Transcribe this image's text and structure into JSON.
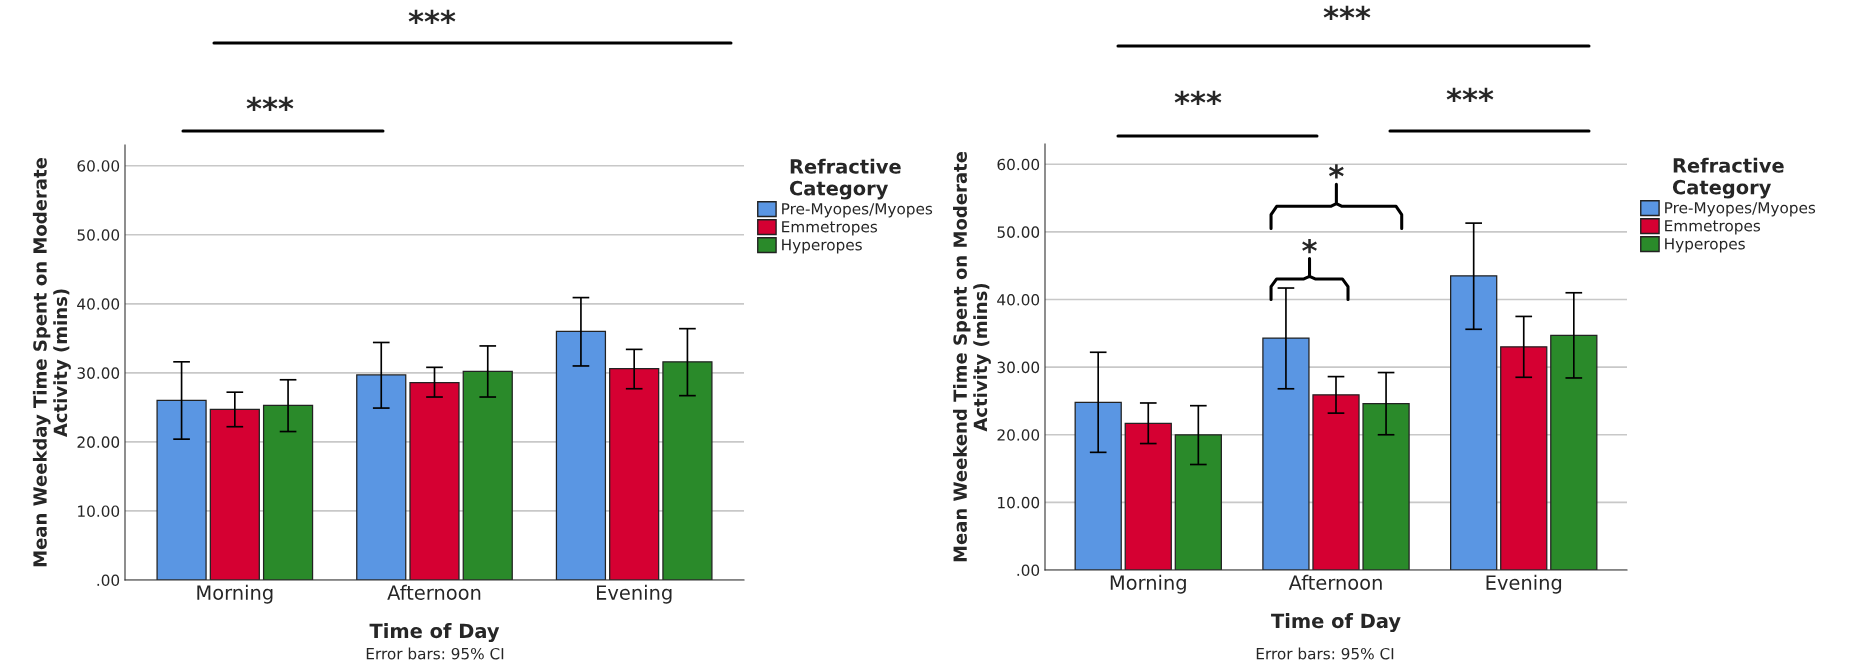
{
  "chart_data": [
    {
      "type": "bar",
      "xlabel": "Time of Day",
      "ylabel": "Mean Weekday Time Spent on Moderate Activity (mins)",
      "legend_title": "Refractive Category",
      "legend": "top right",
      "grid": "y",
      "categories": [
        "Morning",
        "Afternoon",
        "Evening"
      ],
      "ylim": [
        0,
        63
      ],
      "yticks": [
        {
          "value": 0,
          "label": ".00"
        },
        {
          "value": 10,
          "label": "10.00"
        },
        {
          "value": 20,
          "label": "20.00"
        },
        {
          "value": 30,
          "label": "30.00"
        },
        {
          "value": 40,
          "label": "40.00"
        },
        {
          "value": 50,
          "label": "50.00"
        },
        {
          "value": 60,
          "label": "60.00"
        }
      ],
      "series": [
        {
          "name": "Pre-Myopes/Myopes",
          "color": "#5a96e3",
          "values": [
            26.0,
            29.7,
            36.0
          ],
          "errors": [
            [
              20.4,
              31.6
            ],
            [
              24.9,
              34.4
            ],
            [
              31.0,
              40.9
            ]
          ]
        },
        {
          "name": "Emmetropes",
          "color": "#d50032",
          "values": [
            24.7,
            28.6,
            30.6
          ],
          "errors": [
            [
              22.2,
              27.2
            ],
            [
              26.5,
              30.8
            ],
            [
              27.7,
              33.4
            ]
          ]
        },
        {
          "name": "Hyperopes",
          "color": "#2a8a2a",
          "values": [
            25.3,
            30.2,
            31.6
          ],
          "errors": [
            [
              21.5,
              29.0
            ],
            [
              26.5,
              33.9
            ],
            [
              26.7,
              36.4
            ]
          ]
        }
      ],
      "annotations": [
        "***",
        "***",
        "Error bars: 95% CI"
      ]
    },
    {
      "type": "bar",
      "xlabel": "Time of Day",
      "ylabel": "Mean Weekend Time Spent on Moderate Activity (mins)",
      "legend_title": "Refractive Category",
      "legend": "top right",
      "grid": "y",
      "categories": [
        "Morning",
        "Afternoon",
        "Evening"
      ],
      "ylim": [
        0,
        63
      ],
      "yticks": [
        {
          "value": 0,
          "label": ".00"
        },
        {
          "value": 10,
          "label": "10.00"
        },
        {
          "value": 20,
          "label": "20.00"
        },
        {
          "value": 30,
          "label": "30.00"
        },
        {
          "value": 40,
          "label": "40.00"
        },
        {
          "value": 50,
          "label": "50.00"
        },
        {
          "value": 60,
          "label": "60.00"
        }
      ],
      "series": [
        {
          "name": "Pre-Myopes/Myopes",
          "color": "#5a96e3",
          "values": [
            24.8,
            34.3,
            43.5
          ],
          "errors": [
            [
              17.4,
              32.2
            ],
            [
              26.8,
              41.7
            ],
            [
              35.6,
              51.3
            ]
          ]
        },
        {
          "name": "Emmetropes",
          "color": "#d50032",
          "values": [
            21.7,
            25.9,
            33.0
          ],
          "errors": [
            [
              18.7,
              24.7
            ],
            [
              23.2,
              28.6
            ],
            [
              28.5,
              37.5
            ]
          ]
        },
        {
          "name": "Hyperopes",
          "color": "#2a8a2a",
          "values": [
            20.0,
            24.6,
            34.7
          ],
          "errors": [
            [
              15.6,
              24.3
            ],
            [
              20.0,
              29.2
            ],
            [
              28.4,
              41.0
            ]
          ]
        }
      ],
      "annotations": [
        "***",
        "***",
        "***",
        "*",
        "*",
        "Error bars: 95% CI"
      ]
    }
  ]
}
